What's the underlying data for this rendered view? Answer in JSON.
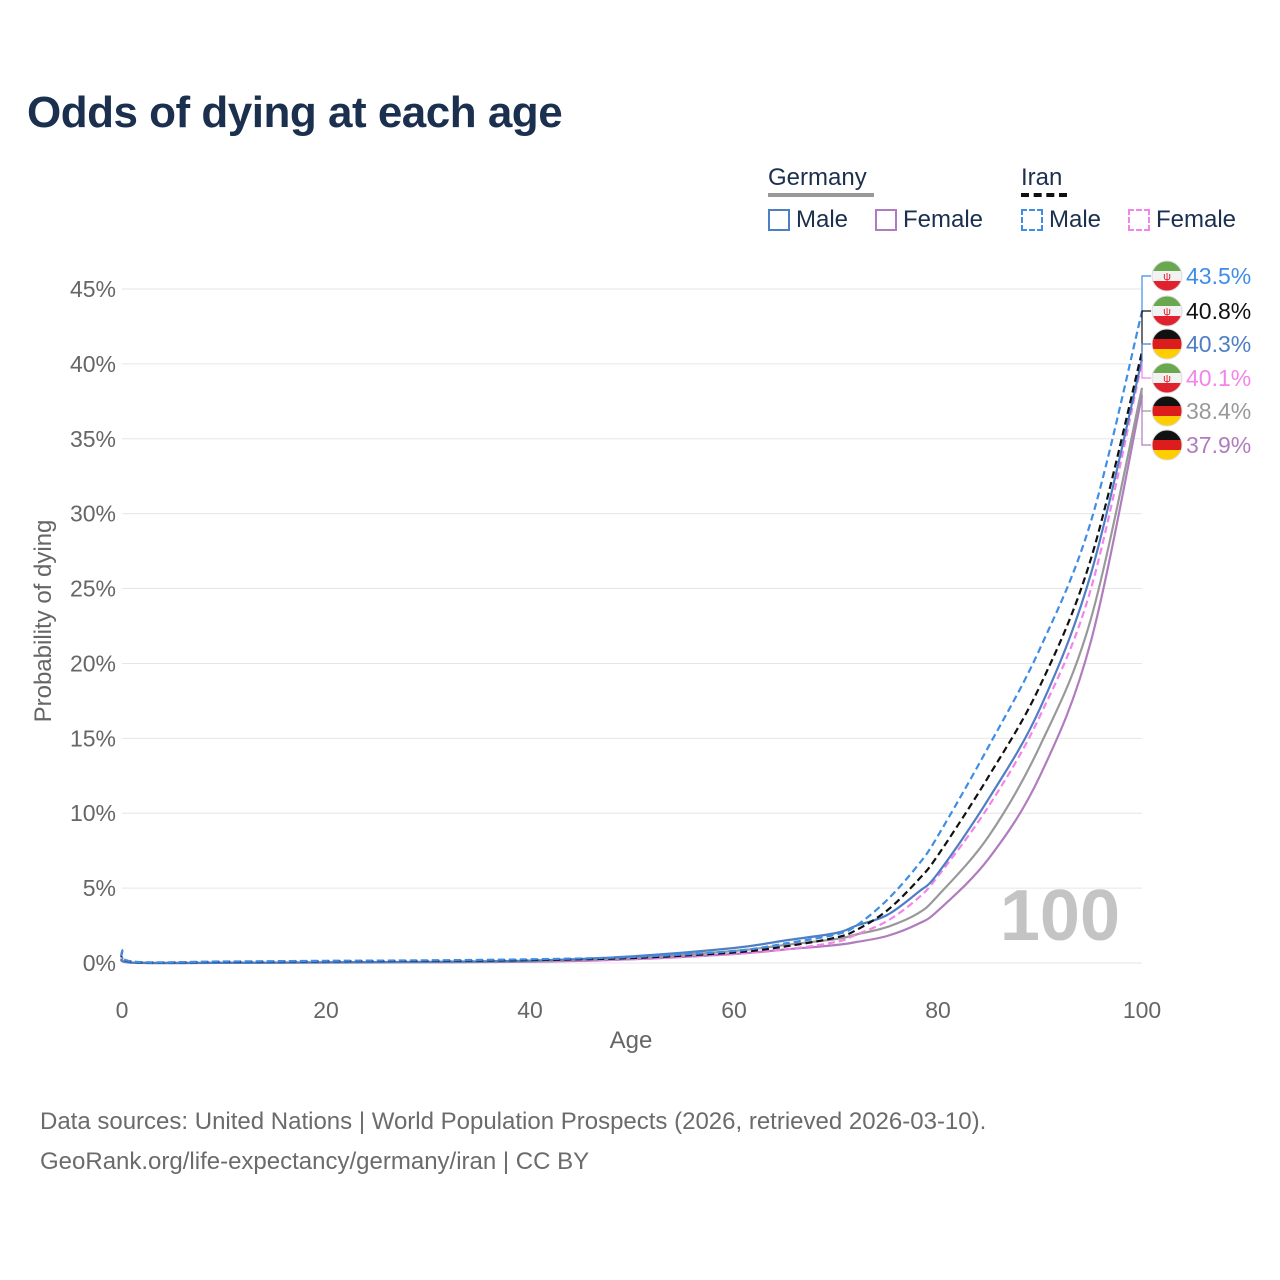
{
  "title": "Odds of dying at each age",
  "legend": {
    "germany_label": "Germany",
    "iran_label": "Iran",
    "male_label": "Male",
    "female_label": "Female"
  },
  "colors": {
    "germany_male": "#4e7ec4",
    "germany_female": "#b07cbf",
    "iran_male": "#3f8de8",
    "iran_female": "#f484ea",
    "iran_combined": "#111111",
    "germany_combined": "#999999",
    "grid": "#e6e6e6",
    "axis_text": "#666666",
    "watermark": "#c4c4c4"
  },
  "watermark": "100",
  "footer": {
    "line1": "Data sources: United Nations | World Population Prospects (2026, retrieved 2026-03-10).",
    "line2": "GeoRank.org/life-expectancy/germany/iran | CC BY"
  },
  "chart_data": {
    "type": "line",
    "title": "Odds of dying at each age",
    "xlabel": "Age",
    "ylabel": "Probability of dying",
    "xlim": [
      0,
      100
    ],
    "ylim": [
      0,
      45
    ],
    "x_ticks": [
      "0",
      "20",
      "40",
      "60",
      "80",
      "100"
    ],
    "y_ticks": [
      "0%",
      "5%",
      "10%",
      "15%",
      "20%",
      "25%",
      "30%",
      "35%",
      "40%",
      "45%"
    ],
    "x": [
      0,
      1,
      10,
      20,
      30,
      40,
      50,
      60,
      65,
      70,
      72,
      75,
      78,
      80,
      85,
      90,
      95,
      100
    ],
    "series": [
      {
        "name": "Iran Male",
        "key": "iran_male",
        "style": "dashed",
        "end_label": "43.5%",
        "values": [
          0.9,
          0.1,
          0.1,
          0.15,
          0.18,
          0.25,
          0.4,
          0.8,
          1.3,
          1.9,
          2.5,
          4.2,
          6.5,
          8.5,
          14.5,
          21.0,
          29.5,
          43.5
        ]
      },
      {
        "name": "Iran (both sexes)",
        "key": "iran_combined",
        "style": "dashed",
        "end_label": "40.8%",
        "values": [
          0.85,
          0.09,
          0.08,
          0.12,
          0.15,
          0.2,
          0.33,
          0.7,
          1.1,
          1.7,
          2.2,
          3.5,
          5.5,
          7.2,
          12.5,
          18.5,
          27.0,
          40.8
        ]
      },
      {
        "name": "Germany Male",
        "key": "germany_male",
        "style": "solid",
        "end_label": "40.3%",
        "values": [
          0.35,
          0.03,
          0.01,
          0.05,
          0.08,
          0.16,
          0.45,
          1.0,
          1.5,
          2.0,
          2.5,
          3.2,
          4.7,
          6.0,
          11.0,
          17.0,
          26.0,
          40.3
        ]
      },
      {
        "name": "Iran Female",
        "key": "iran_female",
        "style": "dashed",
        "end_label": "40.1%",
        "values": [
          0.8,
          0.08,
          0.07,
          0.1,
          0.12,
          0.16,
          0.26,
          0.6,
          0.9,
          1.4,
          1.9,
          2.8,
          4.3,
          5.8,
          10.5,
          16.5,
          25.0,
          40.1
        ]
      },
      {
        "name": "Germany (both sexes)",
        "key": "germany_combined",
        "style": "solid",
        "end_label": "38.4%",
        "values": [
          0.32,
          0.03,
          0.01,
          0.04,
          0.06,
          0.12,
          0.35,
          0.8,
          1.2,
          1.6,
          1.9,
          2.4,
          3.3,
          4.5,
          8.5,
          14.5,
          23.0,
          38.4
        ]
      },
      {
        "name": "Germany Female",
        "key": "germany_female",
        "style": "solid",
        "end_label": "37.9%",
        "values": [
          0.3,
          0.03,
          0.01,
          0.03,
          0.04,
          0.08,
          0.25,
          0.6,
          0.9,
          1.2,
          1.4,
          1.8,
          2.6,
          3.5,
          7.0,
          12.5,
          21.5,
          37.9
        ]
      }
    ],
    "end_markers": [
      {
        "country": "Iran",
        "label": "43.5%",
        "key": "iran_male"
      },
      {
        "country": "Iran",
        "label": "40.8%",
        "key": "iran_combined"
      },
      {
        "country": "Germany",
        "label": "40.3%",
        "key": "germany_male"
      },
      {
        "country": "Iran",
        "label": "40.1%",
        "key": "iran_female"
      },
      {
        "country": "Germany",
        "label": "38.4%",
        "key": "germany_combined"
      },
      {
        "country": "Germany",
        "label": "37.9%",
        "key": "germany_female"
      }
    ]
  }
}
